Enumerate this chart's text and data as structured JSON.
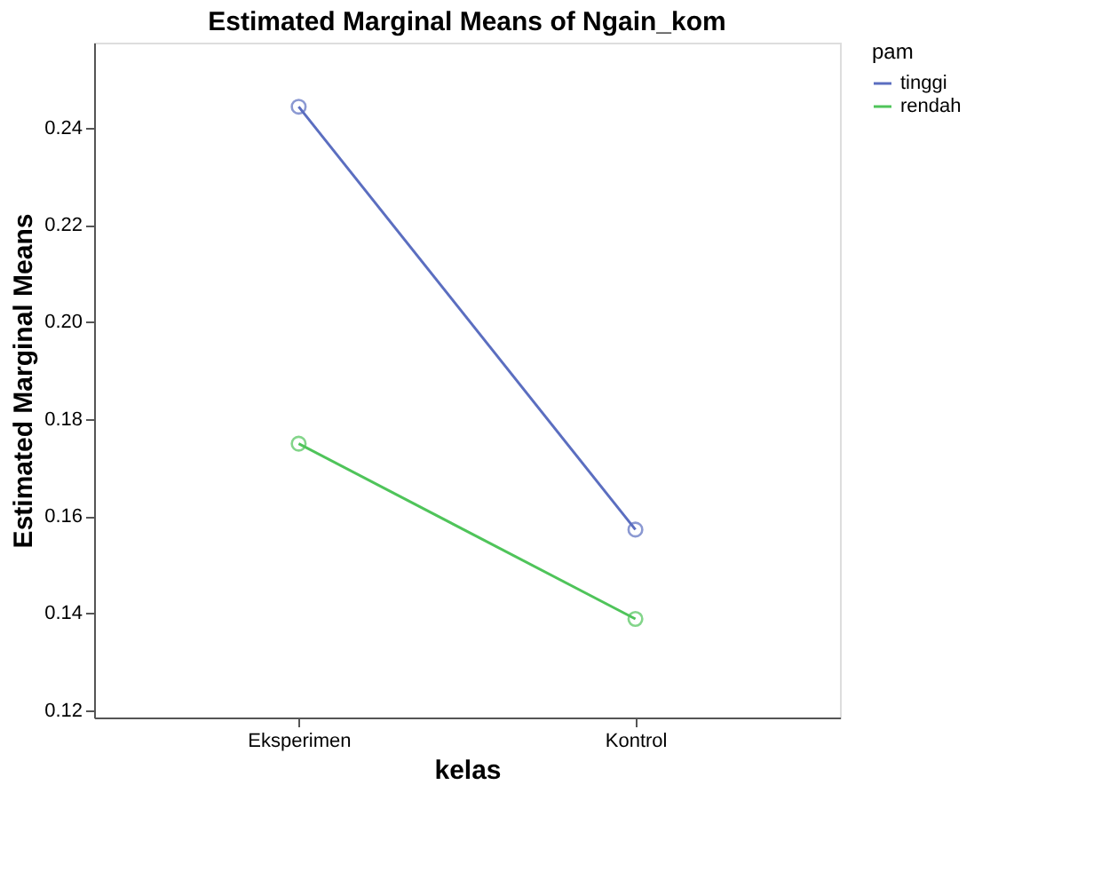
{
  "chart_data": {
    "type": "line",
    "title": "Estimated Marginal Means of Ngain_kom",
    "xlabel": "kelas",
    "ylabel": "Estimated Marginal Means",
    "legend_title": "pam",
    "categories": [
      "Eksperimen",
      "Kontrol"
    ],
    "series": [
      {
        "name": "tinggi",
        "color": "#5b6ec0",
        "values": [
          0.2443,
          0.1572
        ]
      },
      {
        "name": "rendah",
        "color": "#4fc45a",
        "values": [
          0.1749,
          0.1388
        ]
      }
    ],
    "ylim": [
      0.1185,
      0.2575
    ],
    "yticks": [
      0.12,
      0.14,
      0.16,
      0.18,
      {
        "value": 0.2,
        "label": "0.20"
      },
      0.22,
      0.24
    ],
    "grid": false,
    "legend": "top right",
    "marker": "circle",
    "line_style": "solid"
  }
}
